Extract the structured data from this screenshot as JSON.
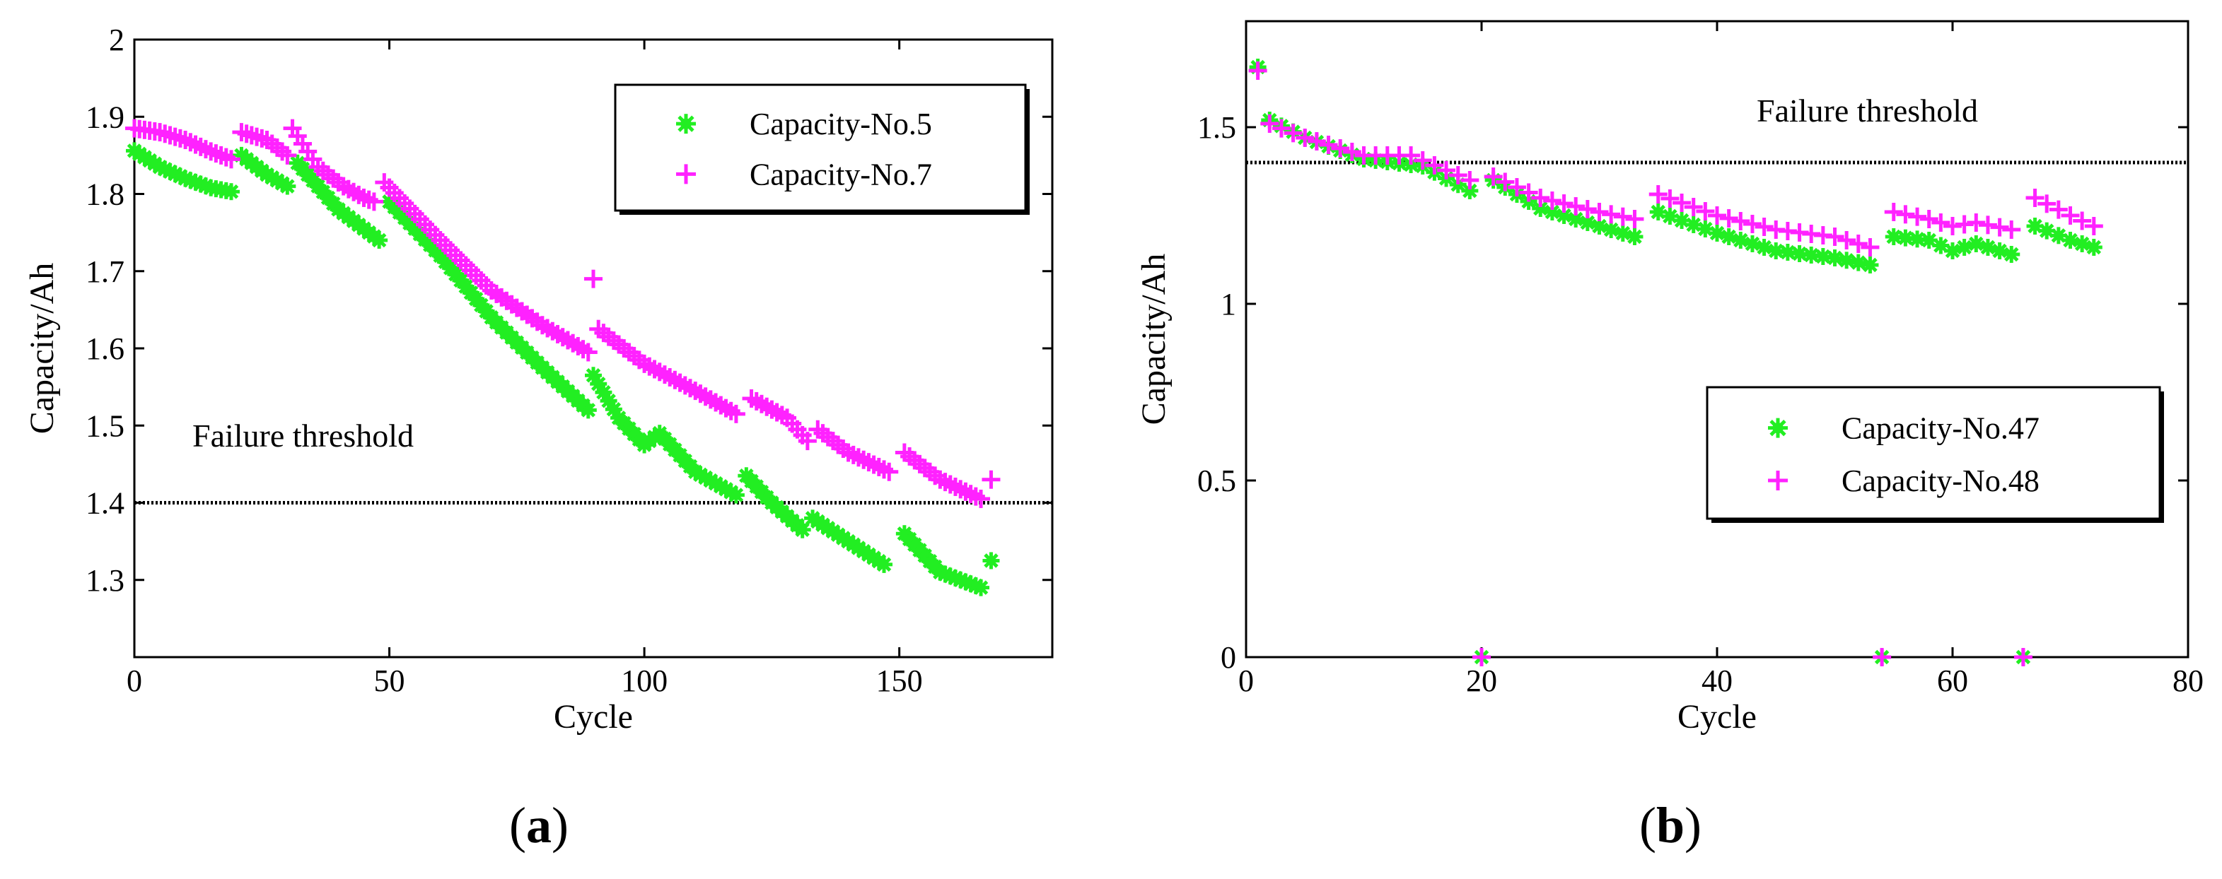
{
  "chart_data": [
    {
      "type": "scatter",
      "panel": "a",
      "panel_label": {
        "open": "(",
        "letter": "a",
        "close": ")"
      },
      "xlabel": "Cycle",
      "ylabel": "Capacity/Ah",
      "xlim": [
        0,
        180
      ],
      "ylim": [
        1.2,
        2.0
      ],
      "xticks": [
        0,
        50,
        100,
        150
      ],
      "yticks": [
        1.3,
        1.4,
        1.5,
        1.6,
        1.7,
        1.8,
        1.9,
        2.0
      ],
      "ytick_labels": [
        "1.3",
        "1.4",
        "1.5",
        "1.6",
        "1.7",
        "1.8",
        "1.9",
        "2"
      ],
      "threshold": {
        "label": "Failure threshold",
        "value": 1.4
      },
      "legend_position": "top-right",
      "series": [
        {
          "name": "Capacity-No.5",
          "marker": "asterisk",
          "color": "#22ee22",
          "segments": [
            [
              [
                0,
                1.856
              ],
              [
                5,
                1.835
              ],
              [
                10,
                1.82
              ],
              [
                15,
                1.808
              ],
              [
                19,
                1.803
              ]
            ],
            [
              [
                21,
                1.85
              ],
              [
                26,
                1.825
              ],
              [
                30,
                1.81
              ]
            ],
            [
              [
                32,
                1.84
              ],
              [
                40,
                1.78
              ],
              [
                46,
                1.75
              ],
              [
                48,
                1.74
              ]
            ],
            [
              [
                50,
                1.79
              ],
              [
                60,
                1.72
              ],
              [
                70,
                1.64
              ],
              [
                80,
                1.575
              ],
              [
                89,
                1.52
              ]
            ],
            [
              [
                90,
                1.565
              ],
              [
                95,
                1.51
              ],
              [
                100,
                1.475
              ],
              [
                103,
                1.49
              ],
              [
                110,
                1.44
              ],
              [
                118,
                1.41
              ]
            ],
            [
              [
                120,
                1.435
              ],
              [
                125,
                1.4
              ],
              [
                131,
                1.365
              ]
            ],
            [
              [
                133,
                1.38
              ],
              [
                140,
                1.35
              ],
              [
                147,
                1.32
              ]
            ],
            [
              [
                151,
                1.36
              ],
              [
                158,
                1.31
              ],
              [
                166,
                1.29
              ]
            ],
            [
              [
                168,
                1.325
              ]
            ]
          ]
        },
        {
          "name": "Capacity-No.7",
          "marker": "plus",
          "color": "#ff22ff",
          "segments": [
            [
              [
                0,
                1.885
              ],
              [
                5,
                1.88
              ],
              [
                10,
                1.87
              ],
              [
                15,
                1.855
              ],
              [
                19,
                1.845
              ]
            ],
            [
              [
                21,
                1.88
              ],
              [
                26,
                1.87
              ],
              [
                30,
                1.85
              ]
            ],
            [
              [
                31,
                1.885
              ],
              [
                36,
                1.835
              ],
              [
                41,
                1.81
              ],
              [
                45,
                1.795
              ],
              [
                47,
                1.79
              ]
            ],
            [
              [
                49,
                1.815
              ],
              [
                60,
                1.74
              ],
              [
                70,
                1.675
              ],
              [
                80,
                1.63
              ],
              [
                89,
                1.595
              ]
            ],
            [
              [
                90,
                1.69
              ]
            ],
            [
              [
                91,
                1.625
              ],
              [
                100,
                1.58
              ],
              [
                110,
                1.545
              ],
              [
                118,
                1.515
              ]
            ],
            [
              [
                121,
                1.535
              ],
              [
                128,
                1.51
              ],
              [
                132,
                1.48
              ]
            ],
            [
              [
                134,
                1.495
              ],
              [
                140,
                1.465
              ],
              [
                148,
                1.44
              ]
            ],
            [
              [
                151,
                1.465
              ],
              [
                158,
                1.43
              ],
              [
                166,
                1.405
              ]
            ],
            [
              [
                168,
                1.43
              ]
            ]
          ]
        }
      ]
    },
    {
      "type": "scatter",
      "panel": "b",
      "panel_label": {
        "open": "(",
        "letter": "b",
        "close": ")"
      },
      "xlabel": "Cycle",
      "ylabel": "Capacity/Ah",
      "xlim": [
        0,
        80
      ],
      "ylim": [
        0,
        1.8
      ],
      "xticks": [
        0,
        20,
        40,
        60,
        80
      ],
      "yticks": [
        0,
        0.5,
        1.0,
        1.5
      ],
      "ytick_labels": [
        "0",
        "0.5",
        "1",
        "1.5"
      ],
      "threshold": {
        "label": "Failure threshold",
        "value": 1.4
      },
      "legend_position": "lower-right",
      "series": [
        {
          "name": "Capacity-No.47",
          "marker": "asterisk",
          "color": "#22ee22",
          "segments": [
            [
              [
                1,
                1.67
              ]
            ],
            [
              [
                2,
                1.52
              ],
              [
                5,
                1.47
              ],
              [
                10,
                1.41
              ],
              [
                15,
                1.39
              ],
              [
                19,
                1.32
              ]
            ],
            [
              [
                20,
                0
              ]
            ],
            [
              [
                21,
                1.35
              ],
              [
                25,
                1.27
              ],
              [
                30,
                1.22
              ],
              [
                33,
                1.19
              ]
            ],
            [
              [
                35,
                1.26
              ],
              [
                40,
                1.2
              ],
              [
                45,
                1.15
              ],
              [
                50,
                1.13
              ],
              [
                53,
                1.11
              ]
            ],
            [
              [
                54,
                0
              ]
            ],
            [
              [
                55,
                1.19
              ],
              [
                58,
                1.18
              ],
              [
                60,
                1.15
              ],
              [
                62,
                1.17
              ],
              [
                65,
                1.14
              ]
            ],
            [
              [
                66,
                0
              ]
            ],
            [
              [
                67,
                1.22
              ],
              [
                70,
                1.18
              ],
              [
                72,
                1.16
              ]
            ]
          ]
        },
        {
          "name": "Capacity-No.48",
          "marker": "plus",
          "color": "#ff22ff",
          "segments": [
            [
              [
                1,
                1.66
              ]
            ],
            [
              [
                2,
                1.51
              ],
              [
                5,
                1.47
              ],
              [
                10,
                1.42
              ],
              [
                14,
                1.42
              ],
              [
                19,
                1.35
              ]
            ],
            [
              [
                20,
                0
              ]
            ],
            [
              [
                21,
                1.36
              ],
              [
                25,
                1.3
              ],
              [
                30,
                1.26
              ],
              [
                33,
                1.24
              ]
            ],
            [
              [
                35,
                1.31
              ],
              [
                40,
                1.25
              ],
              [
                45,
                1.21
              ],
              [
                50,
                1.19
              ],
              [
                53,
                1.16
              ]
            ],
            [
              [
                54,
                0
              ]
            ],
            [
              [
                55,
                1.26
              ],
              [
                58,
                1.24
              ],
              [
                60,
                1.22
              ],
              [
                62,
                1.23
              ],
              [
                65,
                1.21
              ]
            ],
            [
              [
                66,
                0
              ]
            ],
            [
              [
                67,
                1.3
              ],
              [
                70,
                1.25
              ],
              [
                72,
                1.22
              ]
            ]
          ]
        }
      ]
    }
  ]
}
